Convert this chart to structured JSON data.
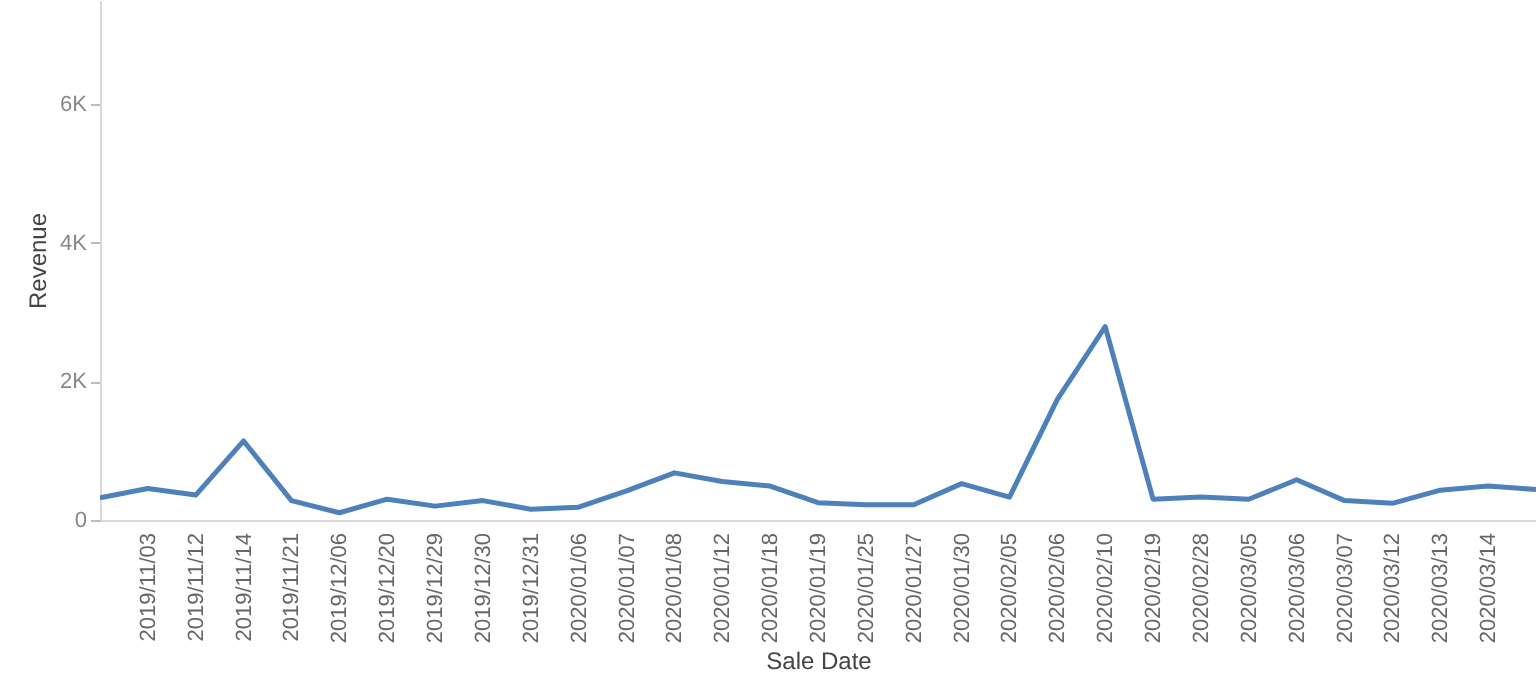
{
  "chart_data": {
    "type": "line",
    "xlabel": "Sale Date",
    "ylabel": "Revenue",
    "categories": [
      null,
      "2019/11/03",
      "2019/11/12",
      "2019/11/14",
      "2019/11/21",
      "2019/12/06",
      "2019/12/20",
      "2019/12/29",
      "2019/12/30",
      "2019/12/31",
      "2020/01/06",
      "2020/01/07",
      "2020/01/08",
      "2020/01/12",
      "2020/01/18",
      "2020/01/19",
      "2020/01/25",
      "2020/01/27",
      "2020/01/30",
      "2020/02/05",
      "2020/02/06",
      "2020/02/10",
      "2020/02/19",
      "2020/02/28",
      "2020/03/05",
      "2020/03/06",
      "2020/03/07",
      "2020/03/12",
      "2020/03/13",
      "2020/03/14",
      null
    ],
    "series": [
      {
        "color": "#4e81b9",
        "values": [
          320,
          455,
          360,
          1140,
          280,
          105,
          300,
          200,
          280,
          155,
          185,
          420,
          680,
          555,
          490,
          250,
          220,
          220,
          525,
          330,
          1740,
          2790,
          300,
          330,
          300,
          580,
          280,
          240,
          430,
          490,
          440
        ]
      }
    ],
    "ylim": [
      0,
      7500
    ],
    "yticks": [
      {
        "value": 0,
        "label": "0"
      },
      {
        "value": 2000,
        "label": "2K"
      },
      {
        "value": 4000,
        "label": "4K"
      },
      {
        "value": 6000,
        "label": "6K"
      }
    ],
    "grid": false,
    "marker": "none",
    "line_style": "solid"
  }
}
